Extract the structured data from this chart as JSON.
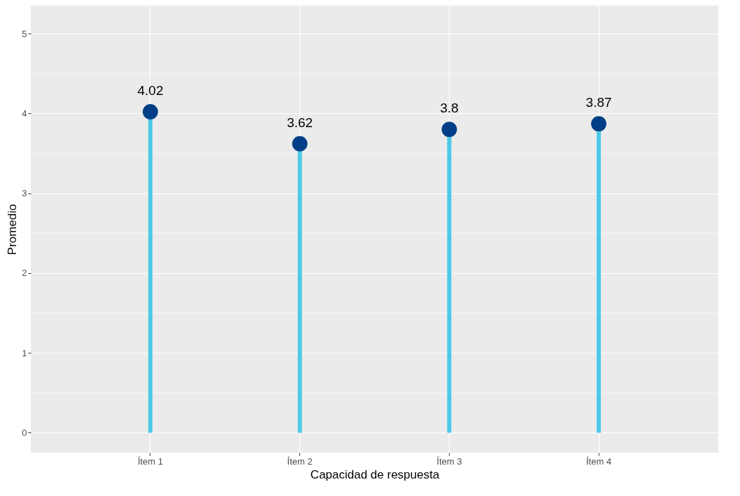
{
  "chart_data": {
    "type": "lollipop",
    "xlabel": "Capacidad de respuesta",
    "ylabel": "Promedio",
    "categories": [
      "Ítem 1",
      "Ítem 2",
      "Ítem 3",
      "Ítem 4"
    ],
    "series": [
      {
        "color": "#4ec9e6",
        "colors": [
          "#003f87",
          "#003f87",
          "#003f87",
          "#003f87"
        ],
        "values": [
          4.02,
          3.62,
          3.8,
          3.87
        ]
      }
    ],
    "ylim": [
      -0.25,
      5.35
    ],
    "yticks": [
      0,
      1,
      2,
      3,
      4,
      5
    ],
    "grid": true,
    "data_labels": true,
    "marker": "circle"
  }
}
